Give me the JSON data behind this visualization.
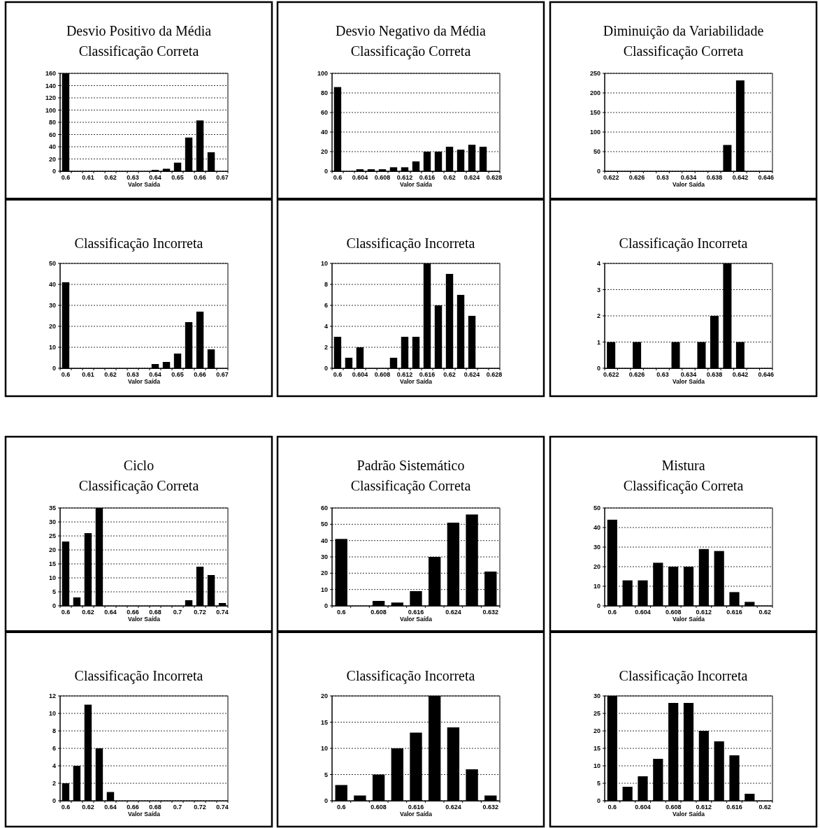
{
  "chart_data": [
    {
      "type": "bar",
      "title": "Desvio Positivo da Média",
      "subtitle": "Classificação Correta",
      "xlabel": "Valor Saída",
      "categories": [
        "0.6",
        null,
        "0.61",
        null,
        "0.62",
        null,
        "0.63",
        null,
        "0.64",
        null,
        "0.65",
        null,
        "0.66",
        null,
        "0.67"
      ],
      "values": [
        160,
        0,
        0,
        0,
        0,
        0,
        0,
        0,
        2,
        4,
        14,
        55,
        83,
        31,
        0
      ],
      "color": "#000000",
      "ylim": [
        0,
        160
      ],
      "yticks": [
        0,
        20,
        40,
        60,
        80,
        100,
        120,
        140,
        160
      ],
      "grid": "y"
    },
    {
      "type": "bar",
      "title": "Desvio Negativo da Média",
      "subtitle": "Classificação Correta",
      "xlabel": "Valor Saída",
      "categories": [
        "0.6",
        null,
        "0.604",
        null,
        "0.608",
        null,
        "0.612",
        null,
        "0.616",
        null,
        "0.62",
        null,
        "0.624",
        null,
        "0.628"
      ],
      "values": [
        86,
        0,
        2,
        2,
        2,
        4,
        4,
        10,
        20,
        20,
        25,
        22,
        27,
        25,
        0
      ],
      "color": "#000000",
      "ylim": [
        0,
        100
      ],
      "yticks": [
        0,
        20,
        40,
        60,
        80,
        100
      ],
      "grid": "y"
    },
    {
      "type": "bar",
      "title": "Diminuição da Variabilidade",
      "subtitle": "Classificação Correta",
      "xlabel": "Valor Saída",
      "categories": [
        "0.622",
        null,
        "0.626",
        null,
        "0.63",
        null,
        "0.634",
        null,
        "0.638",
        null,
        "0.642",
        null,
        "0.646"
      ],
      "values": [
        0,
        0,
        0,
        0,
        0,
        0,
        0,
        0,
        0,
        67,
        232,
        0,
        0
      ],
      "color": "#000000",
      "ylim": [
        0,
        250
      ],
      "yticks": [
        0,
        50,
        100,
        150,
        200,
        250
      ],
      "grid": "y"
    },
    {
      "type": "bar",
      "title": "Classificação Incorreta",
      "xlabel": "Valor Saída",
      "categories": [
        "0.6",
        null,
        "0.61",
        null,
        "0.62",
        null,
        "0.63",
        null,
        "0.64",
        null,
        "0.65",
        null,
        "0.66",
        null,
        "0.67"
      ],
      "values": [
        41,
        0,
        0,
        0,
        0,
        0,
        0,
        0,
        2,
        3,
        7,
        22,
        27,
        9,
        0
      ],
      "color": "#000000",
      "ylim": [
        0,
        50
      ],
      "yticks": [
        0,
        10,
        20,
        30,
        40,
        50
      ],
      "grid": "y"
    },
    {
      "type": "bar",
      "title": "Classificação Incorreta",
      "xlabel": "Valor Saída",
      "categories": [
        "0.6",
        null,
        "0.604",
        null,
        "0.608",
        null,
        "0.612",
        null,
        "0.616",
        null,
        "0.62",
        null,
        "0.624",
        null,
        "0.628"
      ],
      "values": [
        3,
        1,
        2,
        0,
        0,
        1,
        3,
        3,
        10,
        6,
        9,
        7,
        5,
        0,
        0
      ],
      "color": "#000000",
      "ylim": [
        0,
        10
      ],
      "yticks": [
        0,
        2,
        4,
        6,
        8,
        10
      ],
      "grid": "y"
    },
    {
      "type": "bar",
      "title": "Classificação Incorreta",
      "xlabel": "Valor Saída",
      "categories": [
        "0.622",
        null,
        "0.626",
        null,
        "0.63",
        null,
        "0.634",
        null,
        "0.638",
        null,
        "0.642",
        null,
        "0.646"
      ],
      "values": [
        1,
        0,
        1,
        0,
        0,
        1,
        0,
        1,
        2,
        4,
        1,
        0,
        0
      ],
      "color": "#000000",
      "ylim": [
        0,
        4
      ],
      "yticks": [
        0,
        1,
        2,
        3,
        4
      ],
      "grid": "y"
    },
    {
      "type": "bar",
      "title": "Ciclo",
      "subtitle": "Classificação Correta",
      "xlabel": "Valor Saída",
      "categories": [
        "0.6",
        null,
        "0.62",
        null,
        "0.64",
        null,
        "0.66",
        null,
        "0.68",
        null,
        "0.7",
        null,
        "0.72",
        null,
        "0.74"
      ],
      "values": [
        23,
        3,
        26,
        35,
        0,
        0,
        0,
        0,
        0,
        0,
        0,
        2,
        14,
        11,
        1
      ],
      "color": "#000000",
      "ylim": [
        0,
        35
      ],
      "yticks": [
        0,
        5,
        10,
        15,
        20,
        25,
        30,
        35
      ],
      "grid": "y"
    },
    {
      "type": "bar",
      "title": "Padrão Sistemático",
      "subtitle": "Classificação Correta",
      "xlabel": "Valor Saída",
      "categories": [
        "0.6",
        null,
        "0.608",
        null,
        "0.616",
        null,
        "0.624",
        null,
        "0.632"
      ],
      "values": [
        41,
        0,
        3,
        2,
        9,
        30,
        51,
        56,
        21
      ],
      "color": "#000000",
      "ylim": [
        0,
        60
      ],
      "yticks": [
        0,
        10,
        20,
        30,
        40,
        50,
        60
      ],
      "grid": "y"
    },
    {
      "type": "bar",
      "title": "Mistura",
      "subtitle": "Classificação Correta",
      "xlabel": "Valor Saída",
      "categories": [
        "0.6",
        null,
        "0.604",
        null,
        "0.608",
        null,
        "0.612",
        null,
        "0.616",
        null,
        "0.62"
      ],
      "values": [
        44,
        13,
        13,
        22,
        20,
        20,
        29,
        28,
        7,
        2,
        0
      ],
      "color": "#000000",
      "ylim": [
        0,
        50
      ],
      "yticks": [
        0,
        10,
        20,
        30,
        40,
        50
      ],
      "grid": "y"
    },
    {
      "type": "bar",
      "title": "Classificação Incorreta",
      "xlabel": "Valor Saída",
      "categories": [
        "0.6",
        null,
        "0.62",
        null,
        "0.64",
        null,
        "0.66",
        null,
        "0.68",
        null,
        "0.7",
        null,
        "0.72",
        null,
        "0.74"
      ],
      "values": [
        2,
        4,
        11,
        6,
        1,
        0,
        0,
        0,
        0,
        0,
        0,
        0,
        0,
        0,
        0
      ],
      "color": "#000000",
      "ylim": [
        0,
        12
      ],
      "yticks": [
        0,
        2,
        4,
        6,
        8,
        10,
        12
      ],
      "grid": "y"
    },
    {
      "type": "bar",
      "title": "Classificação Incorreta",
      "xlabel": "Valor Saída",
      "categories": [
        "0.6",
        null,
        "0.608",
        null,
        "0.616",
        null,
        "0.624",
        null,
        "0.632"
      ],
      "values": [
        3,
        1,
        5,
        10,
        13,
        20,
        14,
        6,
        1
      ],
      "color": "#000000",
      "ylim": [
        0,
        20
      ],
      "yticks": [
        0,
        5,
        10,
        15,
        20
      ],
      "grid": "y"
    },
    {
      "type": "bar",
      "title": "Classificação Incorreta",
      "xlabel": "Valor Saída",
      "categories": [
        "0.6",
        null,
        "0.604",
        null,
        "0.608",
        null,
        "0.612",
        null,
        "0.616",
        null,
        "0.62"
      ],
      "values": [
        30,
        4,
        7,
        12,
        28,
        28,
        20,
        17,
        13,
        2,
        0
      ],
      "color": "#000000",
      "ylim": [
        0,
        30
      ],
      "yticks": [
        0,
        5,
        10,
        15,
        20,
        25,
        30
      ],
      "grid": "y"
    }
  ]
}
